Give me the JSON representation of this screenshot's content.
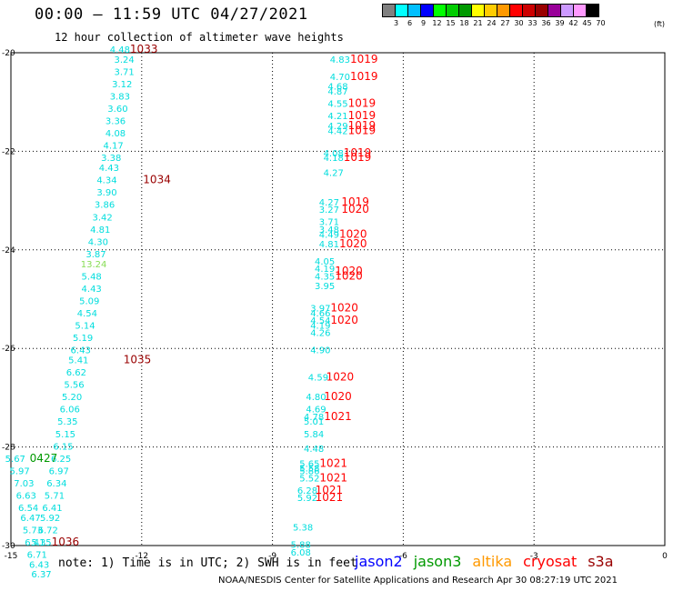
{
  "header": {
    "title": "00:00 – 11:59 UTC 04/27/2021",
    "subtitle": "12 hour collection of altimeter wave heights",
    "note": "note: 1) Time is in UTC; 2) SWH is in feet",
    "credit": "NOAA/NESDIS Center for Satellite Applications and Research    Apr 30 08:27:19 UTC 2021"
  },
  "legend": {
    "colors": [
      "#808080",
      "#00ffff",
      "#00bfff",
      "#0000ff",
      "#00ff00",
      "#00cc00",
      "#009900",
      "#ffff00",
      "#ffcc00",
      "#ff9900",
      "#ff0000",
      "#cc0000",
      "#990000",
      "#990099",
      "#cc99ff",
      "#ff99ff",
      "#000000"
    ],
    "labels": [
      "3",
      "6",
      "9",
      "12",
      "15",
      "18",
      "21",
      "24",
      "27",
      "30",
      "33",
      "36",
      "39",
      "42",
      "45",
      "70"
    ],
    "unit": "(ft)"
  },
  "satellites": [
    {
      "name": "jason2",
      "color": "#0000ff"
    },
    {
      "name": "jason3",
      "color": "#009900"
    },
    {
      "name": "altika",
      "color": "#ff9900"
    },
    {
      "name": "cryosat",
      "color": "#ff0000"
    },
    {
      "name": "s3a",
      "color": "#990000"
    }
  ],
  "chart_data": {
    "type": "scatter",
    "xlim": [
      -15,
      0
    ],
    "ylim": [
      -30,
      -20
    ],
    "xticks": [
      -15,
      -12,
      -9,
      -6,
      -3,
      0
    ],
    "yticks": [
      -20,
      -22,
      -24,
      -26,
      -28,
      -30
    ],
    "grid": true,
    "points": [
      {
        "x": -12.5,
        "y": -20.0,
        "label": "4.48",
        "color": "#00dddd"
      },
      {
        "x": -12.4,
        "y": -20.2,
        "label": "3.24",
        "color": "#00dddd"
      },
      {
        "x": -12.4,
        "y": -20.45,
        "label": "3.71",
        "color": "#00dddd"
      },
      {
        "x": -12.45,
        "y": -20.7,
        "label": "3.12",
        "color": "#00dddd"
      },
      {
        "x": -12.5,
        "y": -20.95,
        "label": "3.83",
        "color": "#00dddd"
      },
      {
        "x": -12.55,
        "y": -21.2,
        "label": "3.60",
        "color": "#00dddd"
      },
      {
        "x": -12.6,
        "y": -21.45,
        "label": "3.36",
        "color": "#00dddd"
      },
      {
        "x": -12.6,
        "y": -21.7,
        "label": "4.08",
        "color": "#00dddd"
      },
      {
        "x": -12.65,
        "y": -21.95,
        "label": "4.17",
        "color": "#00dddd"
      },
      {
        "x": -12.7,
        "y": -22.2,
        "label": "3.38",
        "color": "#00dddd"
      },
      {
        "x": -12.75,
        "y": -22.4,
        "label": "4.43",
        "color": "#00dddd"
      },
      {
        "x": -12.8,
        "y": -22.65,
        "label": "4.34",
        "color": "#00dddd"
      },
      {
        "x": -12.8,
        "y": -22.9,
        "label": "3.90",
        "color": "#00dddd"
      },
      {
        "x": -12.85,
        "y": -23.15,
        "label": "3.86",
        "color": "#00dddd"
      },
      {
        "x": -12.9,
        "y": -23.4,
        "label": "3.42",
        "color": "#00dddd"
      },
      {
        "x": -12.95,
        "y": -23.65,
        "label": "4.81",
        "color": "#00dddd"
      },
      {
        "x": -13.0,
        "y": -23.9,
        "label": "4.30",
        "color": "#00dddd"
      },
      {
        "x": -13.05,
        "y": -24.15,
        "label": "3.87",
        "color": "#00dddd"
      },
      {
        "x": -13.1,
        "y": -24.35,
        "label": "13.24",
        "color": "#88dd55"
      },
      {
        "x": -13.15,
        "y": -24.6,
        "label": "5.48",
        "color": "#00dddd"
      },
      {
        "x": -13.15,
        "y": -24.85,
        "label": "4.43",
        "color": "#00dddd"
      },
      {
        "x": -13.2,
        "y": -25.1,
        "label": "5.09",
        "color": "#00dddd"
      },
      {
        "x": -13.25,
        "y": -25.35,
        "label": "4.54",
        "color": "#00dddd"
      },
      {
        "x": -13.3,
        "y": -25.6,
        "label": "5.14",
        "color": "#00dddd"
      },
      {
        "x": -13.35,
        "y": -25.85,
        "label": "5.19",
        "color": "#00dddd"
      },
      {
        "x": -13.4,
        "y": -26.1,
        "label": "6.43",
        "color": "#00dddd"
      },
      {
        "x": -13.45,
        "y": -26.3,
        "label": "5.41",
        "color": "#00dddd"
      },
      {
        "x": -13.5,
        "y": -26.55,
        "label": "6.62",
        "color": "#00dddd"
      },
      {
        "x": -13.55,
        "y": -26.8,
        "label": "5.56",
        "color": "#00dddd"
      },
      {
        "x": -13.6,
        "y": -27.05,
        "label": "5.20",
        "color": "#00dddd"
      },
      {
        "x": -13.65,
        "y": -27.3,
        "label": "6.06",
        "color": "#00dddd"
      },
      {
        "x": -13.7,
        "y": -27.55,
        "label": "5.35",
        "color": "#00dddd"
      },
      {
        "x": -13.75,
        "y": -27.8,
        "label": "5.15",
        "color": "#00dddd"
      },
      {
        "x": -13.8,
        "y": -28.05,
        "label": "6.15",
        "color": "#00dddd"
      },
      {
        "x": -13.85,
        "y": -28.3,
        "label": "6.25",
        "color": "#00dddd"
      },
      {
        "x": -13.9,
        "y": -28.55,
        "label": "6.97",
        "color": "#00dddd"
      },
      {
        "x": -13.95,
        "y": -28.8,
        "label": "6.34",
        "color": "#00dddd"
      },
      {
        "x": -14.0,
        "y": -29.05,
        "label": "5.71",
        "color": "#00dddd"
      },
      {
        "x": -14.05,
        "y": -29.3,
        "label": "6.41",
        "color": "#00dddd"
      },
      {
        "x": -14.1,
        "y": -29.5,
        "label": "5.92",
        "color": "#00dddd"
      },
      {
        "x": -14.15,
        "y": -29.75,
        "label": "6.72",
        "color": "#00dddd"
      },
      {
        "x": -14.3,
        "y": -30.0,
        "label": "5.35",
        "color": "#00dddd"
      },
      {
        "x": -14.9,
        "y": -28.3,
        "label": "5.67",
        "color": "#00dddd"
      },
      {
        "x": -14.8,
        "y": -28.55,
        "label": "5.97",
        "color": "#00dddd"
      },
      {
        "x": -14.7,
        "y": -28.8,
        "label": "7.03",
        "color": "#00dddd"
      },
      {
        "x": -14.65,
        "y": -29.05,
        "label": "6.63",
        "color": "#00dddd"
      },
      {
        "x": -14.6,
        "y": -29.3,
        "label": "6.54",
        "color": "#00dddd"
      },
      {
        "x": -14.55,
        "y": -29.5,
        "label": "6.47",
        "color": "#00dddd"
      },
      {
        "x": -14.5,
        "y": -29.75,
        "label": "5.73",
        "color": "#00dddd"
      },
      {
        "x": -14.45,
        "y": -30.0,
        "label": "6.41",
        "color": "#00dddd"
      },
      {
        "x": -14.4,
        "y": -30.25,
        "label": "6.71",
        "color": "#00dddd"
      },
      {
        "x": -14.35,
        "y": -30.45,
        "label": "6.43",
        "color": "#00dddd"
      },
      {
        "x": -14.3,
        "y": -30.65,
        "label": "6.37",
        "color": "#00dddd"
      },
      {
        "x": -7.45,
        "y": -20.2,
        "label": "4.83",
        "color": "#00dddd"
      },
      {
        "x": -7.45,
        "y": -20.55,
        "label": "4.70",
        "color": "#00dddd"
      },
      {
        "x": -7.5,
        "y": -20.75,
        "label": "4.68",
        "color": "#00dddd"
      },
      {
        "x": -7.5,
        "y": -20.85,
        "label": "4.87",
        "color": "#00dddd"
      },
      {
        "x": -7.5,
        "y": -21.1,
        "label": "4.55",
        "color": "#00dddd"
      },
      {
        "x": -7.5,
        "y": -21.35,
        "label": "4.21",
        "color": "#00dddd"
      },
      {
        "x": -7.5,
        "y": -21.55,
        "label": "4.29",
        "color": "#00dddd"
      },
      {
        "x": -7.5,
        "y": -21.65,
        "label": "4.42",
        "color": "#00dddd"
      },
      {
        "x": -7.6,
        "y": -22.1,
        "label": "4.08",
        "color": "#00dddd"
      },
      {
        "x": -7.6,
        "y": -22.2,
        "label": "4.18",
        "color": "#00dddd"
      },
      {
        "x": -7.6,
        "y": -22.5,
        "label": "4.27",
        "color": "#00dddd"
      },
      {
        "x": -7.7,
        "y": -23.1,
        "label": "4.27",
        "color": "#00dddd"
      },
      {
        "x": -7.7,
        "y": -23.25,
        "label": "3.27",
        "color": "#00dddd"
      },
      {
        "x": -7.7,
        "y": -23.5,
        "label": "3.71",
        "color": "#00dddd"
      },
      {
        "x": -7.7,
        "y": -23.65,
        "label": "3.48",
        "color": "#00dddd"
      },
      {
        "x": -7.7,
        "y": -23.75,
        "label": "4.49",
        "color": "#00dddd"
      },
      {
        "x": -7.7,
        "y": -23.95,
        "label": "4.81",
        "color": "#00dddd"
      },
      {
        "x": -7.8,
        "y": -24.3,
        "label": "4.05",
        "color": "#00dddd"
      },
      {
        "x": -7.8,
        "y": -24.45,
        "label": "4.19",
        "color": "#00dddd"
      },
      {
        "x": -7.8,
        "y": -24.6,
        "label": "4.35",
        "color": "#00dddd"
      },
      {
        "x": -7.8,
        "y": -24.8,
        "label": "3.95",
        "color": "#00dddd"
      },
      {
        "x": -7.9,
        "y": -25.25,
        "label": "3.97",
        "color": "#00dddd"
      },
      {
        "x": -7.9,
        "y": -25.35,
        "label": "4.66",
        "color": "#00dddd"
      },
      {
        "x": -7.9,
        "y": -25.5,
        "label": "4.54",
        "color": "#00dddd"
      },
      {
        "x": -7.9,
        "y": -25.6,
        "label": "4.19",
        "color": "#00dddd"
      },
      {
        "x": -7.9,
        "y": -25.75,
        "label": "4.26",
        "color": "#00dddd"
      },
      {
        "x": -7.9,
        "y": -26.1,
        "label": "4.90",
        "color": "#00dddd"
      },
      {
        "x": -7.95,
        "y": -26.65,
        "label": "4.59",
        "color": "#00dddd"
      },
      {
        "x": -8.0,
        "y": -27.05,
        "label": "4.80",
        "color": "#00dddd"
      },
      {
        "x": -8.0,
        "y": -27.3,
        "label": "4.69",
        "color": "#00dddd"
      },
      {
        "x": -8.05,
        "y": -27.45,
        "label": "4.78",
        "color": "#00dddd"
      },
      {
        "x": -8.05,
        "y": -27.55,
        "label": "5.01",
        "color": "#00dddd"
      },
      {
        "x": -8.05,
        "y": -27.8,
        "label": "5.84",
        "color": "#00dddd"
      },
      {
        "x": -8.05,
        "y": -28.1,
        "label": "4.48",
        "color": "#00dddd"
      },
      {
        "x": -8.15,
        "y": -28.4,
        "label": "5.65",
        "color": "#00dddd"
      },
      {
        "x": -8.15,
        "y": -28.5,
        "label": "5.58",
        "color": "#00dddd"
      },
      {
        "x": -8.15,
        "y": -28.55,
        "label": "5.86",
        "color": "#00dddd"
      },
      {
        "x": -8.15,
        "y": -28.7,
        "label": "5.52",
        "color": "#00dddd"
      },
      {
        "x": -8.2,
        "y": -28.95,
        "label": "6.28",
        "color": "#00dddd"
      },
      {
        "x": -8.2,
        "y": -29.1,
        "label": "5.92",
        "color": "#00dddd"
      },
      {
        "x": -8.3,
        "y": -29.7,
        "label": "5.38",
        "color": "#00dddd"
      },
      {
        "x": -8.35,
        "y": -30.05,
        "label": "5.88",
        "color": "#00dddd"
      },
      {
        "x": -8.35,
        "y": -30.2,
        "label": "6.08",
        "color": "#00dddd"
      }
    ],
    "annotations": [
      {
        "x": -11.95,
        "y": -20.0,
        "label": "1033",
        "color": "#990000"
      },
      {
        "x": -11.65,
        "y": -22.65,
        "label": "1034",
        "color": "#990000"
      },
      {
        "x": -12.1,
        "y": -26.3,
        "label": "1035",
        "color": "#990000"
      },
      {
        "x": -13.75,
        "y": -30.0,
        "label": "1036",
        "color": "#990000"
      },
      {
        "x": -14.25,
        "y": -28.3,
        "label": "0427",
        "color": "#009900"
      },
      {
        "x": -6.9,
        "y": -20.2,
        "label": "1019",
        "color": "#ff0000"
      },
      {
        "x": -6.9,
        "y": -20.55,
        "label": "1019",
        "color": "#ff0000"
      },
      {
        "x": -6.95,
        "y": -21.1,
        "label": "1019",
        "color": "#ff0000"
      },
      {
        "x": -6.95,
        "y": -21.35,
        "label": "1019",
        "color": "#ff0000"
      },
      {
        "x": -6.95,
        "y": -21.55,
        "label": "1019",
        "color": "#ff0000"
      },
      {
        "x": -6.95,
        "y": -21.65,
        "label": "1019",
        "color": "#ff0000"
      },
      {
        "x": -7.05,
        "y": -22.1,
        "label": "1019",
        "color": "#ff0000"
      },
      {
        "x": -7.05,
        "y": -22.2,
        "label": "1019",
        "color": "#ff0000"
      },
      {
        "x": -7.1,
        "y": -23.1,
        "label": "1019",
        "color": "#ff0000"
      },
      {
        "x": -7.1,
        "y": -23.25,
        "label": "1020",
        "color": "#ff0000"
      },
      {
        "x": -7.15,
        "y": -23.75,
        "label": "1020",
        "color": "#ff0000"
      },
      {
        "x": -7.15,
        "y": -23.95,
        "label": "1020",
        "color": "#ff0000"
      },
      {
        "x": -7.25,
        "y": -24.5,
        "label": "1020",
        "color": "#ff0000"
      },
      {
        "x": -7.25,
        "y": -24.6,
        "label": "1020",
        "color": "#ff0000"
      },
      {
        "x": -7.35,
        "y": -25.25,
        "label": "1020",
        "color": "#ff0000"
      },
      {
        "x": -7.35,
        "y": -25.5,
        "label": "1020",
        "color": "#ff0000"
      },
      {
        "x": -7.45,
        "y": -26.65,
        "label": "1020",
        "color": "#ff0000"
      },
      {
        "x": -7.5,
        "y": -27.05,
        "label": "1020",
        "color": "#ff0000"
      },
      {
        "x": -7.5,
        "y": -27.45,
        "label": "1021",
        "color": "#ff0000"
      },
      {
        "x": -7.6,
        "y": -28.4,
        "label": "1021",
        "color": "#ff0000"
      },
      {
        "x": -7.6,
        "y": -28.7,
        "label": "1021",
        "color": "#ff0000"
      },
      {
        "x": -7.7,
        "y": -28.95,
        "label": "1021",
        "color": "#ff0000"
      },
      {
        "x": -7.7,
        "y": -29.1,
        "label": "1021",
        "color": "#ff0000"
      }
    ]
  }
}
